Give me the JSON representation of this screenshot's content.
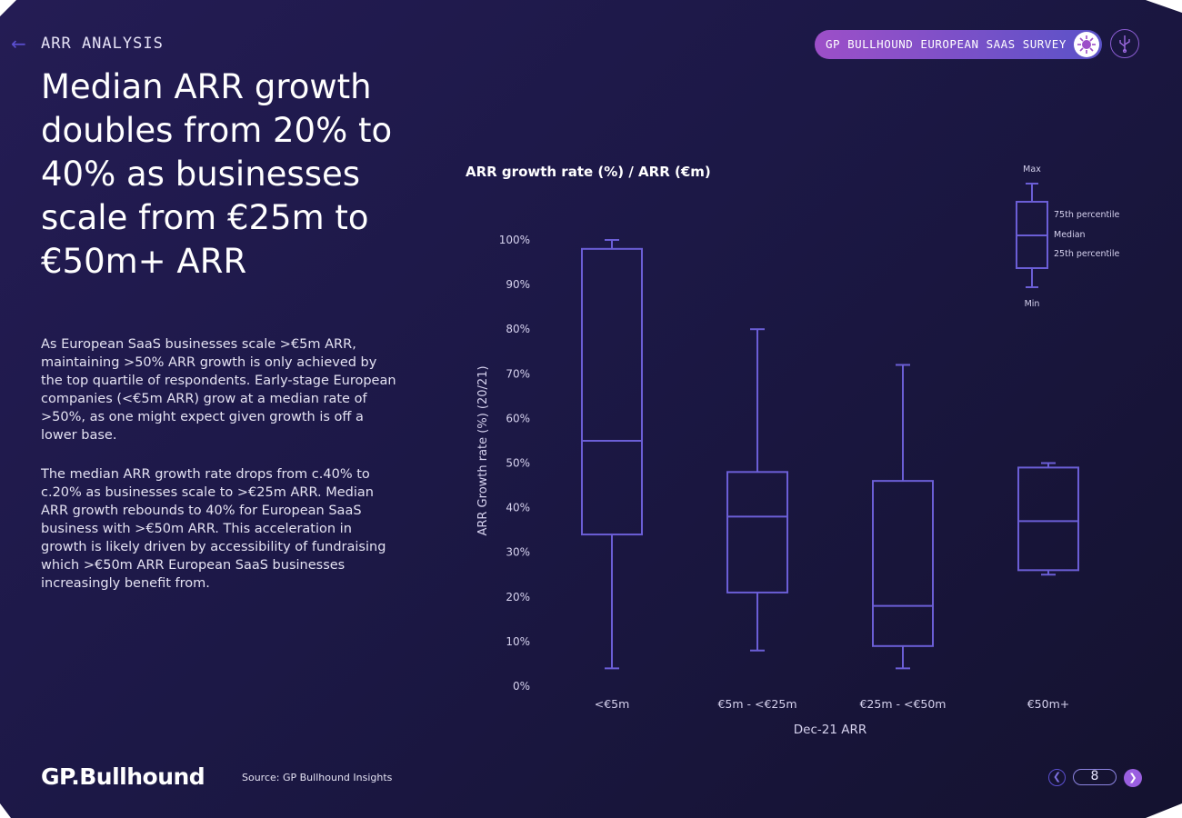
{
  "header": {
    "back_icon": "arrow-left-icon",
    "section_label": "ARR ANALYSIS",
    "survey_pill_label": "GP BULLHOUND EUROPEAN SAAS SURVEY",
    "pill_icon": "virus-icon",
    "usb_icon": "usb-icon"
  },
  "headline": "Median ARR growth doubles from 20% to 40% as businesses scale from €25m to €50m+ ARR",
  "body": {
    "paragraph1": "As European SaaS businesses scale >€5m ARR, maintaining >50% ARR growth is only achieved by the top quartile of respondents. Early-stage European companies (<€5m ARR) grow at a median rate of >50%, as one might expect given growth is off a lower base.",
    "paragraph2": "The median ARR growth rate drops from c.40% to c.20% as businesses scale to >€25m ARR. Median ARR growth rebounds to 40% for European SaaS business with >€50m ARR. This acceleration in growth is likely driven by accessibility of fundraising which >€50m ARR European SaaS businesses increasingly benefit from."
  },
  "chart_data": {
    "type": "boxplot",
    "title": "ARR growth rate (%) / ARR (€m)",
    "xlabel": "Dec-21 ARR",
    "ylabel": "ARR Growth rate (%) (20/21)",
    "ylim": [
      0,
      100
    ],
    "yticks": [
      "0%",
      "10%",
      "20%",
      "30%",
      "40%",
      "50%",
      "60%",
      "70%",
      "80%",
      "90%",
      "100%"
    ],
    "categories": [
      "<€5m",
      "€5m - <€25m",
      "€25m - <€50m",
      "€50m+"
    ],
    "series": [
      {
        "name": "<€5m",
        "min": 4,
        "q1": 34,
        "median": 55,
        "q3": 98,
        "max": 100
      },
      {
        "name": "€5m - <€25m",
        "min": 8,
        "q1": 21,
        "median": 38,
        "q3": 48,
        "max": 80
      },
      {
        "name": "€25m - <€50m",
        "min": 4,
        "q1": 9,
        "median": 18,
        "q3": 46,
        "max": 72
      },
      {
        "name": "€50m+",
        "min": 25,
        "q1": 26,
        "median": 37,
        "q3": 49,
        "max": 50
      }
    ],
    "legend": {
      "max": "Max",
      "q3": "75th percentile",
      "median": "Median",
      "q1": "25th percentile",
      "min": "Min"
    },
    "stroke_color": "#6b5ed6"
  },
  "footer": {
    "logo": "GP.Bullhound",
    "source": "Source: GP Bullhound Insights",
    "page_number": "8",
    "prev_icon": "chevron-left-icon",
    "next_icon": "chevron-right-icon"
  }
}
